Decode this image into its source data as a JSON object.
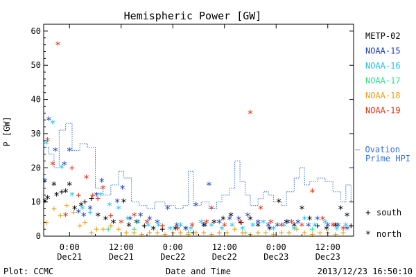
{
  "chart_data": {
    "type": "scatter",
    "title": "Hemispheric Power [GW]",
    "ylabel": "P [GW]",
    "xlabel": "Date and Time",
    "x_range_hours": [
      -6,
      18
    ],
    "ylim": [
      0,
      62
    ],
    "yticks": [
      0,
      10,
      20,
      30,
      40,
      50,
      60
    ],
    "xticks": [
      {
        "hour": -4,
        "time": "0:00",
        "date": "Dec21"
      },
      {
        "hour": 0,
        "time": "12:00",
        "date": "Dec21"
      },
      {
        "hour": 4,
        "time": "0:00",
        "date": "Dec22"
      },
      {
        "hour": 8,
        "time": "12:00",
        "date": "Dec22"
      },
      {
        "hour": 12,
        "time": "0:00",
        "date": "Dec23"
      },
      {
        "hour": 16,
        "time": "12:00",
        "date": "Dec23"
      }
    ],
    "legend": {
      "placement": "right",
      "entries": [
        {
          "name": "METP-02",
          "color": "#000000"
        },
        {
          "name": "NOAA-15",
          "color": "#1a3fbf"
        },
        {
          "name": "NOAA-16",
          "color": "#1cc3ef"
        },
        {
          "name": "NOAA-17",
          "color": "#33e08a"
        },
        {
          "name": "NOAA-18",
          "color": "#f0a010"
        },
        {
          "name": "NOAA-19",
          "color": "#e83010"
        }
      ],
      "ovation_label_1": "– Ovation",
      "ovation_label_2": "Prime HPI",
      "ovation_color": "#2f6fd8",
      "symbol_south": "+",
      "label_south": "south",
      "symbol_north": "*",
      "label_north": "north"
    },
    "series": [
      {
        "name": "METP-02",
        "color": "#000000",
        "points": [
          [
            -5.9,
            10,
            "n"
          ],
          [
            -5.7,
            11,
            "n"
          ],
          [
            -5.2,
            15,
            "n"
          ],
          [
            -5.0,
            12,
            "n"
          ],
          [
            -4.6,
            13,
            "p"
          ],
          [
            -4.3,
            13,
            "n"
          ],
          [
            -4.0,
            15,
            "n"
          ],
          [
            -3.6,
            8,
            "n"
          ],
          [
            -3.1,
            9,
            "n"
          ],
          [
            -2.8,
            10,
            "p"
          ],
          [
            -2.3,
            11,
            "p"
          ],
          [
            -1.8,
            6,
            "n"
          ],
          [
            -1.2,
            5,
            "n"
          ],
          [
            -0.6,
            4,
            "n"
          ],
          [
            0.2,
            10,
            "n"
          ],
          [
            0.6,
            3,
            "n"
          ],
          [
            1.2,
            4,
            "n"
          ],
          [
            1.8,
            3,
            "p"
          ],
          [
            2.5,
            2,
            "n"
          ],
          [
            3.2,
            2,
            "p"
          ],
          [
            4.2,
            2,
            "n"
          ],
          [
            5.0,
            2,
            "n"
          ],
          [
            5.6,
            1,
            "p"
          ],
          [
            6.4,
            3,
            "n"
          ],
          [
            7.2,
            4,
            "n"
          ],
          [
            7.9,
            5,
            "n"
          ],
          [
            8.5,
            6,
            "n"
          ],
          [
            9.3,
            4,
            "p"
          ],
          [
            10.0,
            5,
            "n"
          ],
          [
            10.6,
            3,
            "n"
          ],
          [
            11.5,
            2,
            "n"
          ],
          [
            12.2,
            10,
            "n"
          ],
          [
            12.8,
            4,
            "n"
          ],
          [
            13.4,
            3,
            "n"
          ],
          [
            14.0,
            8,
            "n"
          ],
          [
            14.6,
            5,
            "n"
          ],
          [
            15.2,
            3,
            "p"
          ],
          [
            15.9,
            2,
            "n"
          ],
          [
            16.6,
            3,
            "n"
          ],
          [
            17.0,
            8,
            "n"
          ],
          [
            17.5,
            6,
            "n"
          ],
          [
            17.8,
            3,
            "p"
          ]
        ]
      },
      {
        "name": "NOAA-15",
        "color": "#1a3fbf",
        "points": [
          [
            -5.9,
            16,
            "n"
          ],
          [
            -5.6,
            34,
            "n"
          ],
          [
            -5.1,
            25,
            "n"
          ],
          [
            -4.4,
            21,
            "n"
          ],
          [
            -4.0,
            25,
            "n"
          ],
          [
            -3.3,
            7,
            "n"
          ],
          [
            -2.9,
            6,
            "n"
          ],
          [
            -2.4,
            8,
            "n"
          ],
          [
            -1.9,
            12,
            "n"
          ],
          [
            -1.5,
            16,
            "n"
          ],
          [
            -0.3,
            10,
            "n"
          ],
          [
            0.1,
            14,
            "n"
          ],
          [
            0.7,
            5,
            "n"
          ],
          [
            1.5,
            6,
            "n"
          ],
          [
            2.2,
            5,
            "n"
          ],
          [
            2.8,
            4,
            "n"
          ],
          [
            3.6,
            8,
            "n"
          ],
          [
            4.3,
            3,
            "n"
          ],
          [
            5.0,
            2,
            "n"
          ],
          [
            5.8,
            9,
            "n"
          ],
          [
            6.5,
            3,
            "n"
          ],
          [
            6.8,
            15,
            "n"
          ],
          [
            7.6,
            4,
            "n"
          ],
          [
            8.4,
            5,
            "n"
          ],
          [
            9.1,
            5,
            "n"
          ],
          [
            9.8,
            6,
            "n"
          ],
          [
            10.6,
            4,
            "n"
          ],
          [
            11.4,
            3,
            "n"
          ],
          [
            12.1,
            3,
            "n"
          ],
          [
            12.9,
            4,
            "n"
          ],
          [
            13.7,
            4,
            "n"
          ],
          [
            14.5,
            3,
            "n"
          ],
          [
            15.2,
            5,
            "n"
          ],
          [
            16.0,
            3,
            "n"
          ],
          [
            16.8,
            3,
            "n"
          ],
          [
            17.5,
            2,
            "n"
          ]
        ]
      },
      {
        "name": "NOAA-16",
        "color": "#1cc3ef",
        "points": [
          [
            -5.8,
            27,
            "n"
          ],
          [
            -5.3,
            33,
            "n"
          ],
          [
            -4.6,
            20,
            "n"
          ],
          [
            -3.8,
            12,
            "n"
          ],
          [
            -3.0,
            8,
            "n"
          ],
          [
            -2.4,
            7,
            "p"
          ],
          [
            -1.6,
            12,
            "n"
          ],
          [
            -0.9,
            9,
            "n"
          ],
          [
            -0.2,
            8,
            "n"
          ],
          [
            0.5,
            5,
            "n"
          ],
          [
            1.3,
            4,
            "n"
          ],
          [
            2.1,
            3,
            "n"
          ],
          [
            2.9,
            3,
            "n"
          ],
          [
            3.8,
            2,
            "n"
          ],
          [
            4.6,
            3,
            "n"
          ],
          [
            5.4,
            2,
            "n"
          ],
          [
            6.2,
            4,
            "n"
          ],
          [
            7.0,
            3,
            "n"
          ],
          [
            7.8,
            2,
            "n"
          ],
          [
            8.6,
            3,
            "n"
          ],
          [
            9.4,
            2,
            "n"
          ],
          [
            10.2,
            3,
            "n"
          ],
          [
            11.0,
            4,
            "n"
          ],
          [
            11.8,
            2,
            "n"
          ],
          [
            12.6,
            3,
            "n"
          ],
          [
            13.4,
            2,
            "n"
          ],
          [
            14.2,
            5,
            "n"
          ],
          [
            15.0,
            3,
            "n"
          ],
          [
            15.8,
            4,
            "n"
          ],
          [
            16.7,
            2,
            "n"
          ],
          [
            17.4,
            3,
            "n"
          ]
        ]
      },
      {
        "name": "NOAA-17",
        "color": "#33e08a",
        "points": [
          [
            -1.0,
            2,
            "p"
          ],
          [
            1.0,
            2,
            "p"
          ],
          [
            5.2,
            1,
            "p"
          ],
          [
            9.6,
            1,
            "p"
          ],
          [
            14.8,
            2,
            "p"
          ]
        ]
      },
      {
        "name": "NOAA-18",
        "color": "#f0a010",
        "points": [
          [
            -5.8,
            4,
            "p"
          ],
          [
            -5.2,
            8,
            "p"
          ],
          [
            -4.7,
            6,
            "p"
          ],
          [
            -4.2,
            9,
            "p"
          ],
          [
            -3.7,
            7,
            "p"
          ],
          [
            -3.2,
            3,
            "p"
          ],
          [
            -2.8,
            4,
            "p"
          ],
          [
            -2.3,
            1,
            "p"
          ],
          [
            -1.9,
            2,
            "p"
          ],
          [
            -1.4,
            2,
            "p"
          ],
          [
            -0.8,
            3,
            "p"
          ],
          [
            -0.2,
            2,
            "p"
          ],
          [
            0.4,
            1,
            "p"
          ],
          [
            1.0,
            1,
            "p"
          ],
          [
            1.6,
            0.5,
            "p"
          ],
          [
            2.2,
            1,
            "p"
          ],
          [
            2.8,
            1,
            "p"
          ],
          [
            3.4,
            0.5,
            "p"
          ],
          [
            4.0,
            1,
            "p"
          ],
          [
            4.6,
            1,
            "p"
          ],
          [
            5.2,
            0.5,
            "p"
          ],
          [
            5.8,
            1,
            "p"
          ],
          [
            6.4,
            1,
            "p"
          ],
          [
            7.0,
            0.5,
            "p"
          ],
          [
            7.6,
            1,
            "p"
          ],
          [
            8.2,
            1,
            "p"
          ],
          [
            8.8,
            2,
            "p"
          ],
          [
            9.4,
            1,
            "p"
          ],
          [
            10.0,
            0.5,
            "p"
          ],
          [
            10.6,
            1,
            "p"
          ],
          [
            11.2,
            1,
            "p"
          ],
          [
            11.8,
            0.5,
            "p"
          ],
          [
            12.4,
            1,
            "p"
          ],
          [
            13.0,
            1,
            "p"
          ],
          [
            13.6,
            2,
            "p"
          ],
          [
            14.2,
            1,
            "p"
          ],
          [
            14.8,
            0.5,
            "p"
          ],
          [
            15.4,
            1,
            "p"
          ],
          [
            16.0,
            1,
            "p"
          ],
          [
            16.6,
            0.5,
            "p"
          ],
          [
            17.2,
            1,
            "p"
          ]
        ]
      },
      {
        "name": "NOAA-19",
        "color": "#e83010",
        "points": [
          [
            -5.7,
            28,
            "n"
          ],
          [
            -5.3,
            21,
            "n"
          ],
          [
            -4.9,
            56,
            "n"
          ],
          [
            -4.3,
            6,
            "n"
          ],
          [
            -3.8,
            20,
            "p"
          ],
          [
            -3.3,
            12,
            "p"
          ],
          [
            -2.7,
            17,
            "n"
          ],
          [
            -2.2,
            12,
            "p"
          ],
          [
            -1.8,
            11,
            "p"
          ],
          [
            -1.4,
            14,
            "n"
          ],
          [
            -0.8,
            6,
            "p"
          ],
          [
            0.0,
            4,
            "n"
          ],
          [
            1.0,
            6,
            "n"
          ],
          [
            2.0,
            4,
            "n"
          ],
          [
            3.2,
            3,
            "p"
          ],
          [
            4.4,
            2,
            "n"
          ],
          [
            5.5,
            3,
            "n"
          ],
          [
            6.6,
            4,
            "n"
          ],
          [
            7.0,
            8,
            "n"
          ],
          [
            8.0,
            3,
            "n"
          ],
          [
            9.2,
            4,
            "n"
          ],
          [
            10.0,
            36,
            "n"
          ],
          [
            10.8,
            8,
            "n"
          ],
          [
            11.6,
            4,
            "n"
          ],
          [
            12.4,
            3,
            "n"
          ],
          [
            13.2,
            4,
            "n"
          ],
          [
            14.0,
            3,
            "n"
          ],
          [
            14.8,
            13,
            "n"
          ],
          [
            15.6,
            5,
            "n"
          ],
          [
            16.4,
            3,
            "n"
          ],
          [
            17.2,
            2,
            "n"
          ]
        ]
      }
    ],
    "ovation_steps": [
      [
        -6,
        26
      ],
      [
        -5.6,
        24
      ],
      [
        -5.2,
        20
      ],
      [
        -4.8,
        31
      ],
      [
        -4.3,
        33
      ],
      [
        -3.8,
        25
      ],
      [
        -3.2,
        27
      ],
      [
        -2.6,
        26
      ],
      [
        -2.0,
        14
      ],
      [
        -1.4,
        12
      ],
      [
        -0.8,
        15
      ],
      [
        -0.2,
        19
      ],
      [
        0.2,
        17
      ],
      [
        0.8,
        10
      ],
      [
        1.4,
        9
      ],
      [
        2.0,
        8
      ],
      [
        2.6,
        10
      ],
      [
        3.4,
        9
      ],
      [
        4.2,
        8
      ],
      [
        4.8,
        9
      ],
      [
        5.2,
        19
      ],
      [
        5.6,
        9
      ],
      [
        6.2,
        10
      ],
      [
        6.8,
        8
      ],
      [
        7.4,
        10
      ],
      [
        7.8,
        12
      ],
      [
        8.4,
        14
      ],
      [
        8.8,
        22
      ],
      [
        9.2,
        16
      ],
      [
        9.6,
        12
      ],
      [
        10.0,
        9
      ],
      [
        10.6,
        11
      ],
      [
        11.0,
        13
      ],
      [
        11.4,
        12
      ],
      [
        11.8,
        10
      ],
      [
        12.4,
        9
      ],
      [
        12.8,
        13
      ],
      [
        13.4,
        17
      ],
      [
        13.8,
        20
      ],
      [
        14.2,
        15
      ],
      [
        14.6,
        16
      ],
      [
        15.2,
        17
      ],
      [
        15.8,
        16
      ],
      [
        16.4,
        13
      ],
      [
        17.0,
        10
      ],
      [
        17.4,
        15
      ],
      [
        17.8,
        10
      ]
    ]
  },
  "footer": {
    "plot_credit": "Plot: CCMC",
    "timestamp": "2013/12/23 16:50:10"
  }
}
